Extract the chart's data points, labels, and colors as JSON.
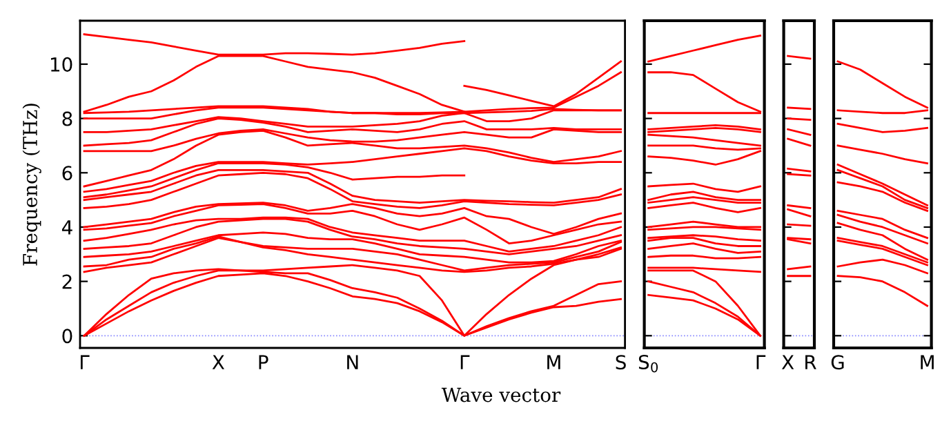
{
  "chart_data": [
    {
      "type": "line",
      "color": "#ff0000",
      "ylabel": "Frequency (THz)",
      "xlabel": "Wave vector",
      "ylim": [
        -0.45,
        11.6
      ],
      "yticks": [
        0,
        2,
        4,
        6,
        8,
        10
      ],
      "categories": [
        "Γ",
        null,
        null,
        null,
        null,
        null,
        "X",
        null,
        "P",
        null,
        null,
        null,
        "N",
        null,
        null,
        null,
        null,
        "Γ",
        null,
        null,
        null,
        "M",
        null,
        null,
        "S"
      ],
      "grid": false,
      "line_style": "solid",
      "ref_lines": [
        {
          "axis": "y",
          "value": 0,
          "color": "#8888ff",
          "line_style": "dotted"
        }
      ],
      "series": [
        {
          "values": [
            0,
            0.45,
            0.9,
            1.3,
            1.65,
            1.95,
            2.2,
            2.25,
            2.3,
            2.2,
            2.0,
            1.75,
            1.45,
            1.35,
            1.2,
            0.9,
            0.5,
            0,
            0.3,
            0.6,
            0.85,
            1.05,
            1.1,
            1.25,
            1.35
          ]
        },
        {
          "values": [
            0,
            0.6,
            1.1,
            1.6,
            1.95,
            2.2,
            2.4,
            2.4,
            2.35,
            2.3,
            2.3,
            2.05,
            1.75,
            1.6,
            1.4,
            1.0,
            0.55,
            0,
            0.35,
            0.65,
            0.9,
            1.1,
            1.5,
            1.9,
            2.0
          ]
        },
        {
          "values": [
            0,
            0.8,
            1.5,
            2.1,
            2.3,
            2.4,
            2.45,
            2.4,
            2.4,
            2.45,
            2.5,
            2.55,
            2.6,
            2.5,
            2.4,
            2.2,
            1.3,
            0,
            0.8,
            1.5,
            2.1,
            2.6,
            2.8,
            2.9,
            3.2
          ]
        },
        {
          "values": [
            2.35,
            2.5,
            2.6,
            2.7,
            3.0,
            3.3,
            3.6,
            3.45,
            3.25,
            3.15,
            3.0,
            2.9,
            2.8,
            2.7,
            2.6,
            2.5,
            2.4,
            2.35,
            2.4,
            2.5,
            2.55,
            2.65,
            2.8,
            3.0,
            3.25
          ]
        },
        {
          "values": [
            2.55,
            2.6,
            2.8,
            2.9,
            3.2,
            3.4,
            3.65,
            3.45,
            3.3,
            3.25,
            3.2,
            3.2,
            3.2,
            3.1,
            3.0,
            2.8,
            2.6,
            2.4,
            2.5,
            2.6,
            2.65,
            2.7,
            2.9,
            3.1,
            3.45
          ]
        },
        {
          "values": [
            2.9,
            2.95,
            3.0,
            3.1,
            3.3,
            3.5,
            3.7,
            3.75,
            3.8,
            3.75,
            3.6,
            3.55,
            3.55,
            3.4,
            3.2,
            3.0,
            2.95,
            2.9,
            2.8,
            2.7,
            2.7,
            2.75,
            3.0,
            3.3,
            3.5
          ]
        },
        {
          "values": [
            3.2,
            3.25,
            3.3,
            3.4,
            3.7,
            4.0,
            4.2,
            4.25,
            4.3,
            4.3,
            4.2,
            3.9,
            3.65,
            3.55,
            3.4,
            3.3,
            3.25,
            3.2,
            3.1,
            3.0,
            3.1,
            3.2,
            3.3,
            3.5,
            3.7
          ]
        },
        {
          "values": [
            3.5,
            3.6,
            3.75,
            3.9,
            4.1,
            4.25,
            4.3,
            4.3,
            4.35,
            4.35,
            4.3,
            4.0,
            3.8,
            3.7,
            3.6,
            3.5,
            3.5,
            3.5,
            3.3,
            3.1,
            3.2,
            3.3,
            3.5,
            3.7,
            4.0
          ]
        },
        {
          "values": [
            3.9,
            3.95,
            4.05,
            4.15,
            4.4,
            4.6,
            4.8,
            4.82,
            4.85,
            4.7,
            4.5,
            4.5,
            4.6,
            4.4,
            4.1,
            3.9,
            4.1,
            4.35,
            3.9,
            3.4,
            3.5,
            3.7,
            3.9,
            4.1,
            4.2
          ]
        },
        {
          "values": [
            4.0,
            4.1,
            4.2,
            4.3,
            4.55,
            4.75,
            4.85,
            4.87,
            4.9,
            4.8,
            4.6,
            4.7,
            4.85,
            4.7,
            4.5,
            4.4,
            4.5,
            4.7,
            4.4,
            4.3,
            4.0,
            3.75,
            4.0,
            4.3,
            4.5
          ]
        },
        {
          "values": [
            4.7,
            4.75,
            4.85,
            5.0,
            5.3,
            5.6,
            5.9,
            5.95,
            6.0,
            5.95,
            5.8,
            5.4,
            4.95,
            4.85,
            4.75,
            4.7,
            4.8,
            4.95,
            4.9,
            4.85,
            4.82,
            4.8,
            4.9,
            5.0,
            5.2
          ]
        },
        {
          "values": [
            5.0,
            5.1,
            5.2,
            5.3,
            5.6,
            5.9,
            6.1,
            6.1,
            6.1,
            6.05,
            6.0,
            5.6,
            5.15,
            5.0,
            4.95,
            4.9,
            4.95,
            5.0,
            4.97,
            4.95,
            4.92,
            4.9,
            5.0,
            5.1,
            5.4
          ]
        },
        {
          "values": [
            5.1,
            5.2,
            5.35,
            5.5,
            5.8,
            6.1,
            6.35,
            6.35,
            6.35,
            6.3,
            6.2,
            6.0,
            5.75,
            5.8,
            5.85,
            5.85,
            5.9,
            5.9,
            null,
            null,
            null,
            null,
            null,
            null,
            null
          ]
        },
        {
          "values": [
            5.3,
            5.4,
            5.55,
            5.7,
            6.0,
            6.25,
            6.4,
            6.4,
            6.4,
            6.35,
            6.3,
            6.35,
            6.4,
            6.5,
            6.6,
            6.7,
            6.8,
            6.9,
            6.8,
            6.6,
            6.45,
            6.35,
            6.35,
            6.4,
            6.4
          ]
        },
        {
          "values": [
            5.5,
            5.7,
            5.9,
            6.1,
            6.5,
            7.0,
            7.4,
            7.5,
            7.55,
            7.3,
            7.0,
            7.05,
            7.1,
            7.0,
            6.9,
            6.9,
            6.95,
            7.0,
            6.9,
            6.75,
            6.55,
            6.4,
            6.5,
            6.6,
            6.8
          ]
        },
        {
          "values": [
            6.8,
            6.8,
            6.8,
            6.8,
            7.0,
            7.25,
            7.45,
            7.55,
            7.6,
            7.45,
            7.3,
            7.2,
            7.15,
            7.15,
            7.2,
            7.3,
            7.4,
            7.5,
            7.4,
            7.3,
            7.3,
            7.6,
            7.55,
            7.5,
            7.5
          ]
        },
        {
          "values": [
            7.0,
            7.05,
            7.1,
            7.2,
            7.5,
            7.8,
            8.0,
            7.95,
            7.85,
            7.7,
            7.5,
            7.55,
            7.6,
            7.55,
            7.5,
            7.6,
            7.8,
            7.9,
            7.6,
            7.6,
            7.6,
            7.65,
            7.6,
            7.6,
            7.6
          ]
        },
        {
          "values": [
            7.5,
            7.5,
            7.55,
            7.6,
            7.75,
            7.9,
            8.05,
            8.0,
            7.9,
            7.8,
            7.7,
            7.7,
            7.7,
            7.75,
            7.8,
            7.9,
            8.1,
            8.2,
            7.9,
            7.9,
            8.0,
            8.3,
            8.3,
            8.3,
            8.3
          ]
        },
        {
          "values": [
            8.0,
            8.0,
            8.0,
            8.0,
            8.15,
            8.3,
            8.4,
            8.4,
            8.4,
            8.35,
            8.3,
            8.25,
            8.2,
            8.2,
            8.15,
            8.15,
            8.2,
            8.2,
            8.22,
            8.25,
            8.28,
            8.35,
            8.32,
            8.3,
            8.3
          ]
        },
        {
          "values": [
            8.2,
            8.22,
            8.25,
            8.3,
            8.35,
            8.4,
            8.45,
            8.45,
            8.45,
            8.4,
            8.35,
            8.25,
            8.2,
            8.2,
            8.2,
            8.2,
            8.22,
            8.25,
            8.3,
            8.35,
            8.38,
            8.4,
            8.8,
            9.2,
            9.7
          ]
        },
        {
          "values": [
            8.25,
            8.5,
            8.8,
            9.0,
            9.4,
            9.9,
            10.3,
            10.3,
            10.3,
            10.1,
            9.9,
            9.8,
            9.7,
            9.5,
            9.2,
            8.9,
            8.5,
            8.25,
            null,
            null,
            null,
            null,
            null,
            null,
            null
          ]
        },
        {
          "values": [
            11.1,
            11.0,
            10.9,
            10.8,
            10.65,
            10.5,
            10.35,
            10.35,
            10.35,
            10.4,
            10.4,
            10.38,
            10.35,
            10.4,
            10.5,
            10.6,
            10.75,
            10.85,
            null,
            null,
            null,
            null,
            null,
            null,
            null
          ]
        },
        {
          "values": [
            null,
            null,
            null,
            null,
            null,
            null,
            null,
            null,
            null,
            null,
            null,
            null,
            null,
            null,
            null,
            null,
            null,
            9.2,
            9.05,
            8.85,
            8.65,
            8.45,
            8.9,
            9.5,
            10.1
          ]
        }
      ]
    },
    {
      "type": "line",
      "color": "#ff0000",
      "ylim": [
        -0.45,
        11.6
      ],
      "yticks": [
        0,
        2,
        4,
        6,
        8,
        10
      ],
      "tick_labels": "x",
      "categories": [
        "S$_{0}$",
        null,
        null,
        null,
        null,
        "Γ"
      ],
      "grid": false,
      "line_style": "solid",
      "ref_lines": [
        {
          "axis": "y",
          "value": 0,
          "color": "#8888ff",
          "line_style": "dotted"
        }
      ],
      "series": [
        {
          "values": [
            1.5,
            1.4,
            1.3,
            1.0,
            0.6,
            0
          ]
        },
        {
          "values": [
            2.0,
            1.8,
            1.6,
            1.2,
            0.7,
            0
          ]
        },
        {
          "values": [
            2.4,
            2.4,
            2.4,
            2.0,
            1.1,
            0
          ]
        },
        {
          "values": [
            2.5,
            2.5,
            2.5,
            2.45,
            2.4,
            2.35
          ]
        },
        {
          "values": [
            2.9,
            2.95,
            2.95,
            2.85,
            2.85,
            2.9
          ]
        },
        {
          "values": [
            3.2,
            3.3,
            3.4,
            3.2,
            3.05,
            3.1
          ]
        },
        {
          "values": [
            3.5,
            3.6,
            3.6,
            3.4,
            3.3,
            3.3
          ]
        },
        {
          "values": [
            3.6,
            3.65,
            3.7,
            3.65,
            3.55,
            3.5
          ]
        },
        {
          "values": [
            3.9,
            3.95,
            4.0,
            4.0,
            3.95,
            3.9
          ]
        },
        {
          "values": [
            4.0,
            4.1,
            4.2,
            4.1,
            4.0,
            4.0
          ]
        },
        {
          "values": [
            4.7,
            4.8,
            4.9,
            4.7,
            4.55,
            4.7
          ]
        },
        {
          "values": [
            4.9,
            5.0,
            5.1,
            5.0,
            4.9,
            4.9
          ]
        },
        {
          "values": [
            5.0,
            5.2,
            5.3,
            5.1,
            5.0,
            5.0
          ]
        },
        {
          "values": [
            5.5,
            5.55,
            5.6,
            5.4,
            5.3,
            5.5
          ]
        },
        {
          "values": [
            6.6,
            6.55,
            6.45,
            6.3,
            6.5,
            6.8
          ]
        },
        {
          "values": [
            7.0,
            7.0,
            7.0,
            6.9,
            6.85,
            6.9
          ]
        },
        {
          "values": [
            7.4,
            7.35,
            7.3,
            7.2,
            7.1,
            7.0
          ]
        },
        {
          "values": [
            7.5,
            7.55,
            7.6,
            7.65,
            7.6,
            7.5
          ]
        },
        {
          "values": [
            7.6,
            7.65,
            7.7,
            7.75,
            7.7,
            7.6
          ]
        },
        {
          "values": [
            8.2,
            8.2,
            8.2,
            8.2,
            8.2,
            8.2
          ]
        },
        {
          "values": [
            9.7,
            9.7,
            9.6,
            9.1,
            8.6,
            8.25
          ]
        },
        {
          "values": [
            10.1,
            10.3,
            10.5,
            10.7,
            10.9,
            11.05
          ]
        }
      ]
    },
    {
      "type": "line",
      "color": "#ff0000",
      "ylim": [
        -0.45,
        11.6
      ],
      "yticks": [
        0,
        2,
        4,
        6,
        8,
        10
      ],
      "tick_labels": "x",
      "categories": [
        "X",
        "R"
      ],
      "grid": false,
      "line_style": "solid",
      "ref_lines": [
        {
          "axis": "y",
          "value": 0,
          "color": "#8888ff",
          "line_style": "dotted"
        }
      ],
      "series": [
        {
          "values": [
            2.2,
            2.2
          ]
        },
        {
          "values": [
            2.45,
            2.55
          ]
        },
        {
          "values": [
            3.55,
            3.4
          ]
        },
        {
          "values": [
            3.6,
            3.55
          ]
        },
        {
          "values": [
            4.1,
            4.05
          ]
        },
        {
          "values": [
            4.65,
            4.4
          ]
        },
        {
          "values": [
            4.8,
            4.7
          ]
        },
        {
          "values": [
            5.95,
            5.9
          ]
        },
        {
          "values": [
            6.15,
            6.05
          ]
        },
        {
          "values": [
            7.25,
            7.0
          ]
        },
        {
          "values": [
            7.6,
            7.4
          ]
        },
        {
          "values": [
            8.0,
            7.95
          ]
        },
        {
          "values": [
            8.4,
            8.35
          ]
        },
        {
          "values": [
            10.3,
            10.2
          ]
        }
      ]
    },
    {
      "type": "line",
      "color": "#ff0000",
      "ylim": [
        -0.45,
        11.6
      ],
      "yticks": [
        0,
        2,
        4,
        6,
        8,
        10
      ],
      "tick_labels": "x",
      "categories": [
        "G",
        null,
        null,
        null,
        "M"
      ],
      "grid": false,
      "line_style": "solid",
      "ref_lines": [
        {
          "axis": "y",
          "value": 0,
          "color": "#8888ff",
          "line_style": "dotted"
        }
      ],
      "series": [
        {
          "values": [
            2.2,
            2.15,
            2.0,
            1.6,
            1.1
          ]
        },
        {
          "values": [
            2.55,
            2.7,
            2.8,
            2.6,
            2.3
          ]
        },
        {
          "values": [
            3.5,
            3.35,
            3.2,
            2.9,
            2.6
          ]
        },
        {
          "values": [
            3.6,
            3.45,
            3.3,
            3.0,
            2.7
          ]
        },
        {
          "values": [
            4.15,
            3.9,
            3.7,
            3.2,
            2.8
          ]
        },
        {
          "values": [
            4.45,
            4.2,
            4.0,
            3.7,
            3.4
          ]
        },
        {
          "values": [
            4.6,
            4.45,
            4.3,
            3.9,
            3.6
          ]
        },
        {
          "values": [
            5.65,
            5.5,
            5.3,
            4.9,
            4.6
          ]
        },
        {
          "values": [
            6.1,
            5.8,
            5.5,
            5.0,
            4.7
          ]
        },
        {
          "values": [
            6.3,
            5.95,
            5.6,
            5.2,
            4.8
          ]
        },
        {
          "values": [
            7.0,
            6.85,
            6.7,
            6.5,
            6.35
          ]
        },
        {
          "values": [
            7.8,
            7.65,
            7.5,
            7.55,
            7.65
          ]
        },
        {
          "values": [
            8.3,
            8.25,
            8.2,
            8.2,
            8.3
          ]
        },
        {
          "values": [
            10.1,
            9.8,
            9.3,
            8.8,
            8.4
          ]
        }
      ]
    }
  ]
}
